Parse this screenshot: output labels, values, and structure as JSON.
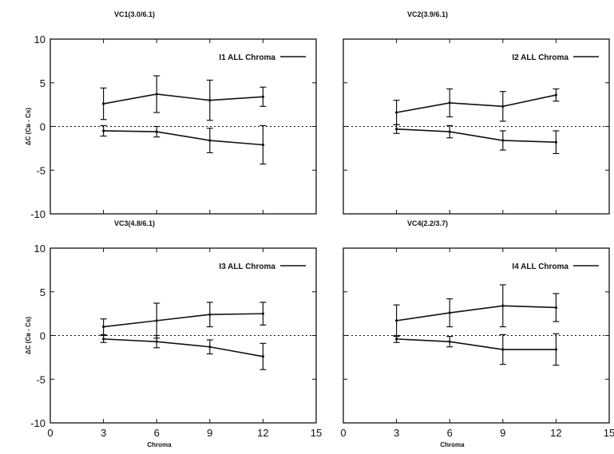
{
  "chart_data": [
    {
      "type": "line",
      "title": "VC1(3.0/6.1)",
      "legend": "I1 ALL Chroma",
      "legend_position": "top-right",
      "xlabel": "",
      "ylabel": "ΔC (Cʙ - Cs)",
      "xlim": [
        0,
        15
      ],
      "ylim": [
        -10,
        10
      ],
      "xticks": [
        "",
        "",
        "",
        "",
        "",
        ""
      ],
      "yticks": [
        "10",
        "5",
        "0",
        "-5",
        "-10"
      ],
      "grid": false,
      "x": [
        3,
        6,
        9,
        12
      ],
      "series": [
        {
          "values": [
            2.6,
            3.7,
            3.0,
            3.4
          ],
          "err": [
            1.8,
            2.1,
            2.3,
            1.1
          ]
        },
        {
          "values": [
            -0.5,
            -0.6,
            -1.6,
            -2.1
          ],
          "err": [
            0.6,
            0.6,
            1.4,
            2.2
          ]
        }
      ]
    },
    {
      "type": "line",
      "title": "VC2(3.9/6.1)",
      "legend": "I2 ALL Chroma",
      "legend_position": "top-right",
      "xlabel": "",
      "ylabel": "",
      "xlim": [
        0,
        15
      ],
      "ylim": [
        -10,
        10
      ],
      "xticks": [
        "",
        "",
        "",
        "",
        "",
        ""
      ],
      "yticks": [
        "",
        "",
        "",
        "",
        ""
      ],
      "grid": false,
      "x": [
        3,
        6,
        9,
        12
      ],
      "series": [
        {
          "values": [
            1.6,
            2.7,
            2.3,
            3.6
          ],
          "err": [
            1.4,
            1.6,
            1.7,
            0.7
          ]
        },
        {
          "values": [
            -0.3,
            -0.6,
            -1.6,
            -1.8
          ],
          "err": [
            0.5,
            0.7,
            1.1,
            1.3
          ]
        }
      ]
    },
    {
      "type": "line",
      "title": "VC3(4.8/6.1)",
      "legend": "I3 ALL Chroma",
      "legend_position": "top-right",
      "xlabel": "Chroma",
      "ylabel": "ΔC (Cʙ - Cs)",
      "xlim": [
        0,
        15
      ],
      "ylim": [
        -10,
        10
      ],
      "xticks": [
        "0",
        "3",
        "6",
        "9",
        "12",
        "15"
      ],
      "yticks": [
        "10",
        "5",
        "0",
        "-5",
        "-10"
      ],
      "grid": false,
      "x": [
        3,
        6,
        9,
        12
      ],
      "series": [
        {
          "values": [
            1.0,
            1.7,
            2.4,
            2.5
          ],
          "err": [
            0.9,
            2.0,
            1.4,
            1.3
          ]
        },
        {
          "values": [
            -0.4,
            -0.7,
            -1.3,
            -2.4
          ],
          "err": [
            0.4,
            0.7,
            0.8,
            1.5
          ]
        }
      ]
    },
    {
      "type": "line",
      "title": "VC4(2.2/3.7)",
      "legend": "I4 ALL Chroma",
      "legend_position": "top-right",
      "xlabel": "Chroma",
      "ylabel": "",
      "xlim": [
        0,
        15
      ],
      "ylim": [
        -10,
        10
      ],
      "xticks": [
        "0",
        "3",
        "6",
        "9",
        "12",
        "15"
      ],
      "yticks": [
        "",
        "",
        "",
        "",
        ""
      ],
      "grid": false,
      "x": [
        3,
        6,
        9,
        12
      ],
      "series": [
        {
          "values": [
            1.7,
            2.6,
            3.4,
            3.2
          ],
          "err": [
            1.8,
            1.6,
            2.4,
            1.6
          ]
        },
        {
          "values": [
            -0.4,
            -0.7,
            -1.6,
            -1.6
          ],
          "err": [
            0.4,
            0.6,
            1.7,
            1.8
          ]
        }
      ]
    }
  ]
}
